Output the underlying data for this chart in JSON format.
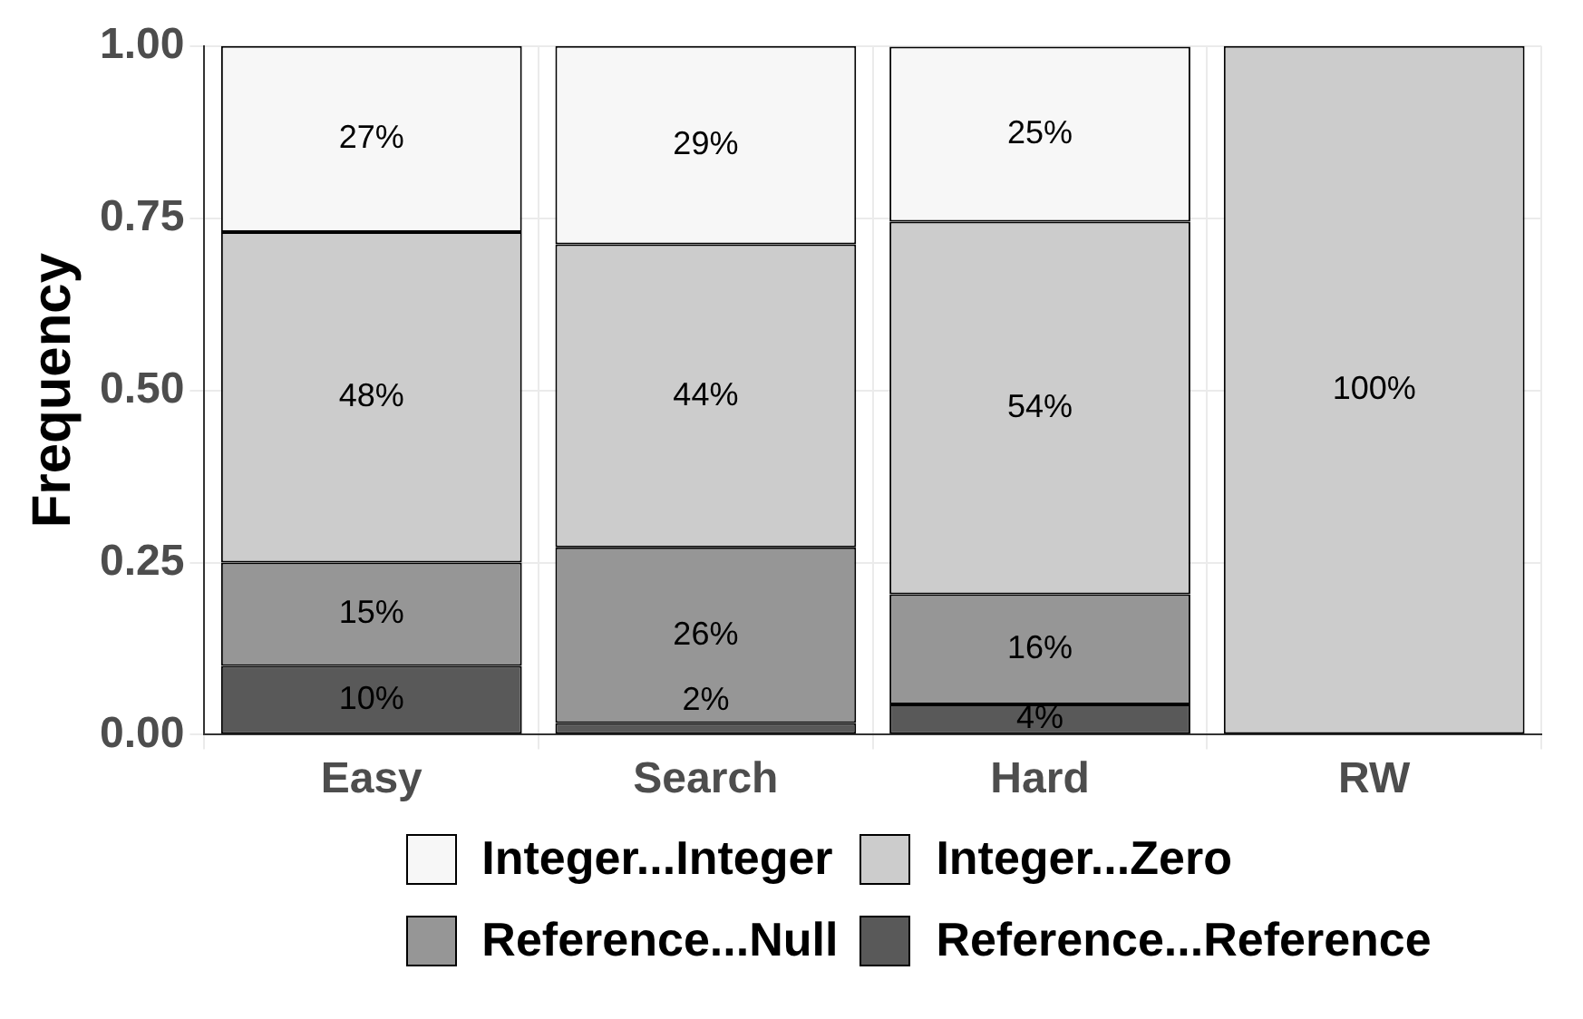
{
  "chart_data": {
    "type": "bar",
    "stacked": true,
    "ylabel": "Frequency",
    "categories": [
      "Easy",
      "Search",
      "Hard",
      "RW"
    ],
    "series": [
      {
        "name": "Reference...Reference",
        "color": "#595959",
        "values": [
          0.1,
          0.017,
          0.044,
          0
        ],
        "value_labels": [
          "10%",
          "2%",
          "4%",
          null
        ]
      },
      {
        "name": "Reference...Null",
        "color": "#969696",
        "values": [
          0.15,
          0.255,
          0.16,
          0
        ],
        "value_labels": [
          "15%",
          "26%",
          "16%",
          null
        ]
      },
      {
        "name": "Integer...Zero",
        "color": "#cccccc",
        "values": [
          0.48,
          0.44,
          0.541,
          1.0
        ],
        "value_labels": [
          "48%",
          "44%",
          "54%",
          "100%"
        ]
      },
      {
        "name": "Integer...Integer",
        "color": "#f7f7f7",
        "values": [
          0.27,
          0.288,
          0.254,
          0
        ],
        "value_labels": [
          "27%",
          "29%",
          "25%",
          null
        ]
      }
    ],
    "ylim": [
      0,
      1
    ],
    "yticks": [
      {
        "value": 0,
        "label": "0.00"
      },
      {
        "value": 0.25,
        "label": "0.25"
      },
      {
        "value": 0.5,
        "label": "0.50"
      },
      {
        "value": 0.75,
        "label": "0.75"
      },
      {
        "value": 1,
        "label": "1.00"
      }
    ],
    "grid": true,
    "legend": "bottom"
  }
}
